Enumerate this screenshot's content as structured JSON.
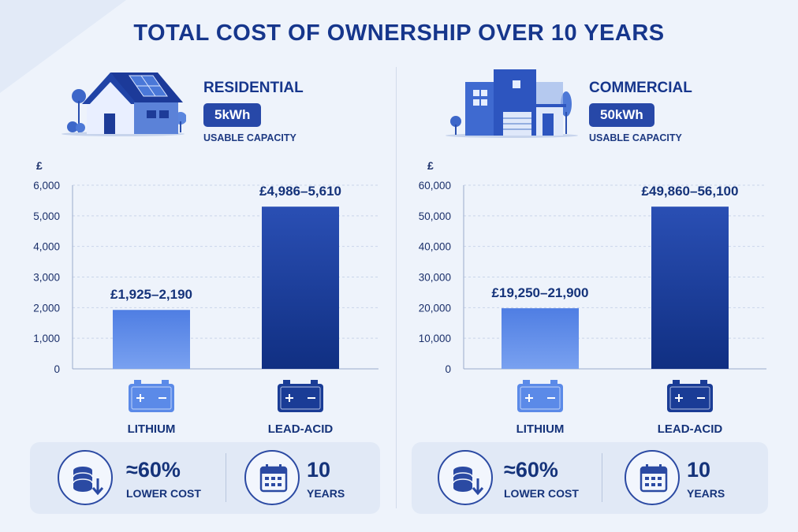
{
  "title": "TOTAL COST OF OWNERSHIP OVER 10 YEARS",
  "colors": {
    "lithium": "#5b8ae8",
    "lead_acid": "#1a3c96",
    "accent": "#2748a8",
    "text": "#15337a"
  },
  "panels": [
    {
      "segment": "RESIDENTIAL",
      "icon": "house-with-solar-panels-icon",
      "capacity": "5kWh",
      "capacity_caption": "USABLE CAPACITY",
      "chart_data": {
        "type": "bar",
        "ylabel": "£",
        "ylim": [
          0,
          6000
        ],
        "yticks": [
          "0",
          "1,000",
          "2,000",
          "3,000",
          "4,000",
          "5,000",
          "6,000"
        ],
        "ytick_values": [
          0,
          1000,
          2000,
          3000,
          4000,
          5000,
          6000
        ],
        "categories": [
          "LITHIUM",
          "LEAD-ACID"
        ],
        "category_icons": [
          "battery-icon",
          "battery-icon"
        ],
        "values": [
          1925,
          5300
        ],
        "data_labels": [
          "£1,925–2,190",
          "£4,986–5,610"
        ],
        "grid": true,
        "legend": "none"
      },
      "stats": [
        {
          "value": "≈60%",
          "label": "LOWER COST",
          "icon": "coins-down-arrow-icon"
        },
        {
          "value": "10",
          "label": "YEARS",
          "icon": "calendar-icon"
        }
      ]
    },
    {
      "segment": "COMMERCIAL",
      "icon": "commercial-building-icon",
      "capacity": "50kWh",
      "capacity_caption": "USABLE CAPACITY",
      "chart_data": {
        "type": "bar",
        "ylabel": "£",
        "ylim": [
          0,
          60000
        ],
        "yticks": [
          "0",
          "10,000",
          "20,000",
          "30,000",
          "40,000",
          "50,000",
          "60,000"
        ],
        "ytick_values": [
          0,
          10000,
          20000,
          30000,
          40000,
          50000,
          60000
        ],
        "categories": [
          "LITHIUM",
          "LEAD-ACID"
        ],
        "category_icons": [
          "battery-icon",
          "battery-icon"
        ],
        "values": [
          19800,
          53000
        ],
        "data_labels": [
          "£19,250–21,900",
          "£49,860–56,100"
        ],
        "grid": true,
        "legend": "none"
      },
      "stats": [
        {
          "value": "≈60%",
          "label": "LOWER COST",
          "icon": "coins-down-arrow-icon"
        },
        {
          "value": "10",
          "label": "YEARS",
          "icon": "calendar-icon"
        }
      ]
    }
  ]
}
